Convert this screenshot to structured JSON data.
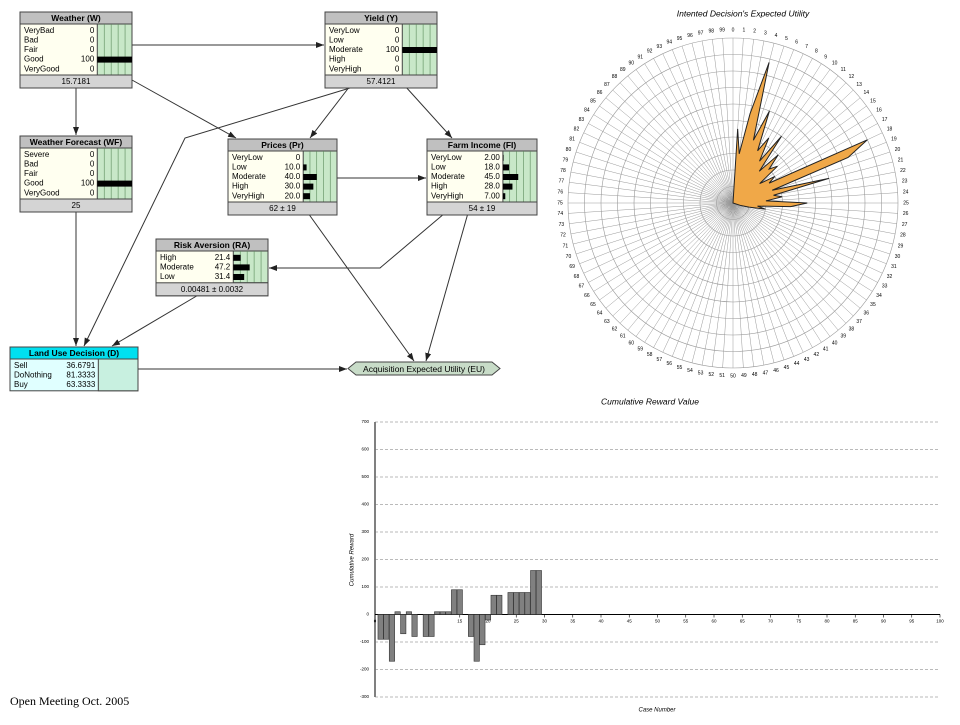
{
  "nodes": [
    {
      "title": "Weather (W)",
      "states": [
        {
          "name": "VeryBad",
          "value": 0
        },
        {
          "name": "Bad",
          "value": 0
        },
        {
          "name": "Fair",
          "value": 0
        },
        {
          "name": "Good",
          "value": 100
        },
        {
          "name": "VeryGood",
          "value": 0
        }
      ],
      "footer": "15.7181"
    },
    {
      "title": "Yield (Y)",
      "states": [
        {
          "name": "VeryLow",
          "value": 0
        },
        {
          "name": "Low",
          "value": 0
        },
        {
          "name": "Moderate",
          "value": 100
        },
        {
          "name": "High",
          "value": 0
        },
        {
          "name": "VeryHigh",
          "value": 0
        }
      ],
      "footer": "57.4121"
    },
    {
      "title": "Weather Forecast (WF)",
      "states": [
        {
          "name": "Severe",
          "value": 0
        },
        {
          "name": "Bad",
          "value": 0
        },
        {
          "name": "Fair",
          "value": 0
        },
        {
          "name": "Good",
          "value": 100
        },
        {
          "name": "VeryGood",
          "value": 0
        }
      ],
      "footer": "25"
    },
    {
      "title": "Prices (Pr)",
      "states": [
        {
          "name": "VeryLow",
          "value": 0
        },
        {
          "name": "Low",
          "value": 10,
          "label": "10.0"
        },
        {
          "name": "Moderate",
          "value": 40,
          "label": "40.0"
        },
        {
          "name": "High",
          "value": 30,
          "label": "30.0"
        },
        {
          "name": "VeryHigh",
          "value": 20,
          "label": "20.0"
        }
      ],
      "footer": "62 ± 19"
    },
    {
      "title": "Farm Income (FI)",
      "states": [
        {
          "name": "VeryLow",
          "value": 2,
          "label": "2.00"
        },
        {
          "name": "Low",
          "value": 18,
          "label": "18.0"
        },
        {
          "name": "Moderate",
          "value": 45,
          "label": "45.0"
        },
        {
          "name": "High",
          "value": 28,
          "label": "28.0"
        },
        {
          "name": "VeryHigh",
          "value": 7,
          "label": "7.00"
        }
      ],
      "footer": "54 ± 19"
    },
    {
      "title": "Risk Aversion (RA)",
      "states": [
        {
          "name": "High",
          "value": 21.4
        },
        {
          "name": "Moderate",
          "value": 47.2
        },
        {
          "name": "Low",
          "value": 31.4
        }
      ],
      "footer": "0.00481 ± 0.0032"
    },
    {
      "title": "Land Use Decision (D)",
      "states": [
        {
          "name": "Sell",
          "value": 36.6791
        },
        {
          "name": "DoNothing",
          "value": 81.3333
        },
        {
          "name": "Buy",
          "value": 63.3333
        }
      ]
    },
    {
      "title": "Acquisition Expected Utility (EU)"
    }
  ],
  "chart_data": [
    {
      "type": "radar",
      "title": "Intented Decision's Expected Utility",
      "rlim": [
        0,
        100
      ],
      "color": "#f0a848",
      "categories": [
        0,
        1,
        2,
        3,
        4,
        5,
        6,
        7,
        8,
        9,
        10,
        11,
        12,
        13,
        14,
        15,
        16,
        17,
        18,
        19,
        20,
        21,
        22,
        23,
        24,
        25,
        26,
        27,
        28,
        29,
        30,
        31,
        32,
        33,
        34,
        35,
        36,
        37,
        38,
        39,
        40,
        41,
        42,
        43,
        44,
        45,
        46,
        47,
        48,
        49,
        50,
        51,
        52,
        53,
        54,
        55,
        56,
        57,
        58,
        59,
        60,
        61,
        62,
        63,
        64,
        65,
        66,
        67,
        68,
        69,
        70,
        71,
        72,
        73,
        74,
        75,
        76,
        77,
        78,
        79,
        80,
        81,
        82,
        83,
        84,
        85,
        86,
        87,
        88,
        89,
        90,
        91,
        92,
        93,
        94,
        95,
        96,
        97,
        98,
        99
      ],
      "values": [
        0,
        45,
        30,
        55,
        88,
        40,
        60,
        35,
        45,
        30,
        50,
        25,
        40,
        30,
        35,
        20,
        30,
        25,
        90,
        75,
        25,
        60,
        25,
        30,
        20,
        45,
        35,
        15,
        20,
        10,
        5,
        0,
        0,
        0,
        0,
        0,
        0,
        0,
        0,
        0,
        0,
        0,
        0,
        0,
        0,
        0,
        0,
        0,
        0,
        0,
        0,
        0,
        0,
        0,
        0,
        0,
        0,
        0,
        0,
        0,
        0,
        0,
        0,
        0,
        0,
        0,
        0,
        0,
        0,
        0,
        0,
        0,
        0,
        0,
        0,
        0,
        0,
        0,
        0,
        0,
        0,
        0,
        0,
        0,
        0,
        0,
        0,
        0,
        0,
        0,
        0,
        0,
        0,
        0,
        0,
        0,
        0,
        0,
        0,
        0
      ]
    },
    {
      "type": "bar",
      "title": "Cumulative Reward Value",
      "ylabel": "Cumulative Reward",
      "xlabel": "Case Number",
      "color": "#808080",
      "grid": true,
      "xlim": [
        0,
        100
      ],
      "xticks": [
        0,
        5,
        10,
        15,
        20,
        25,
        30,
        35,
        40,
        45,
        50,
        55,
        60,
        65,
        70,
        75,
        80,
        85,
        90,
        95,
        100
      ],
      "ylim": [
        -300,
        700
      ],
      "yticks": [
        -300,
        -200,
        -100,
        0,
        100,
        200,
        300,
        400,
        500,
        600,
        700
      ],
      "x": [
        1,
        2,
        3,
        4,
        5,
        6,
        7,
        8,
        9,
        10,
        11,
        12,
        13,
        14,
        15,
        16,
        17,
        18,
        19,
        20,
        21,
        22,
        23,
        24,
        25,
        26,
        27,
        28,
        29,
        30
      ],
      "values": [
        -90,
        -90,
        -170,
        10,
        -70,
        10,
        -80,
        0,
        -80,
        -80,
        10,
        10,
        10,
        90,
        90,
        0,
        -80,
        -170,
        -110,
        -20,
        70,
        70,
        0,
        80,
        80,
        80,
        80,
        160,
        160,
        0
      ]
    }
  ],
  "footer": "Open Meeting Oct. 2005"
}
